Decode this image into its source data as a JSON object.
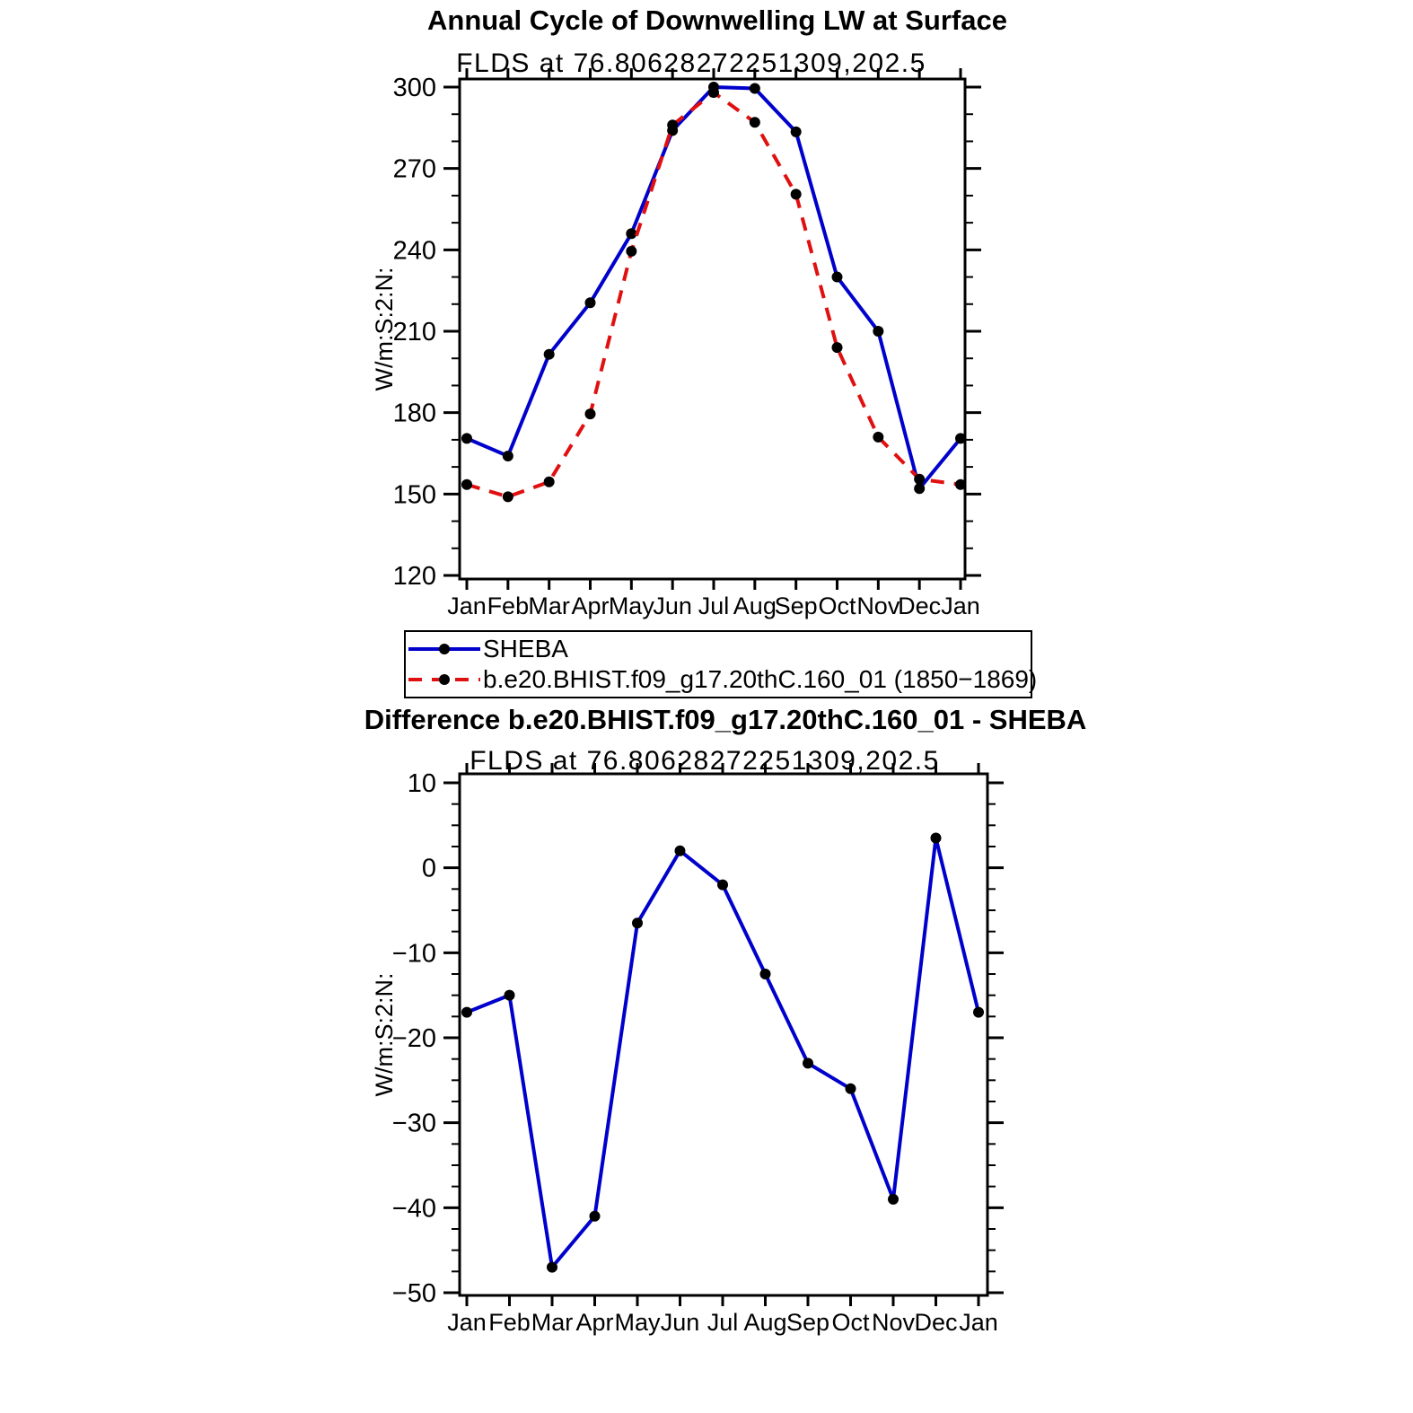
{
  "page": {
    "background": "#ffffff"
  },
  "colors": {
    "axis": "#000000",
    "marker": "#000000",
    "sheba_line": "#0000cc",
    "model_line": "#e01010"
  },
  "legend": {
    "entries": [
      {
        "label": "SHEBA",
        "color": "#0000cc",
        "dash": "none"
      },
      {
        "label": "b.e20.BHIST.f09_g17.20thC.160_01 (1850−1869)",
        "color": "#e01010",
        "dash": "15 11"
      }
    ]
  },
  "chart_data": [
    {
      "type": "line",
      "title": "Annual Cycle of Downwelling LW at Surface",
      "subtitle": "FLDS at 76.80628272251309,202.5",
      "ylabel": "W/m:S:2:N:",
      "xlabel": "",
      "categories": [
        "Jan",
        "Feb",
        "Mar",
        "Apr",
        "May",
        "Jun",
        "Jul",
        "Aug",
        "Sep",
        "Oct",
        "Nov",
        "Dec",
        "Jan"
      ],
      "ylim": [
        120,
        300
      ],
      "yticks": [
        120,
        150,
        180,
        210,
        240,
        270,
        300
      ],
      "y_minor_step": 10,
      "grid": false,
      "legend_position": "below",
      "series": [
        {
          "name": "SHEBA",
          "color": "#0000cc",
          "style": "solid",
          "marker": "circle",
          "values": [
            170.5,
            164,
            201.5,
            220.5,
            246,
            284,
            300,
            299.5,
            283.5,
            230,
            210,
            152,
            170.5
          ]
        },
        {
          "name": "b.e20.BHIST.f09_g17.20thC.160_01 (1850−1869)",
          "color": "#e01010",
          "style": "dashed",
          "marker": "circle",
          "values": [
            153.5,
            149,
            154.5,
            179.5,
            239.5,
            286,
            298,
            287,
            260.5,
            204,
            171,
            155.5,
            153.5
          ]
        }
      ]
    },
    {
      "type": "line",
      "title": "Difference b.e20.BHIST.f09_g17.20thC.160_01 - SHEBA",
      "subtitle": "FLDS at 76.80628272251309,202.5",
      "ylabel": "W/m:S:2:N:",
      "xlabel": "",
      "categories": [
        "Jan",
        "Feb",
        "Mar",
        "Apr",
        "May",
        "Jun",
        "Jul",
        "Aug",
        "Sep",
        "Oct",
        "Nov",
        "Dec",
        "Jan"
      ],
      "ylim": [
        -50,
        10
      ],
      "yticks": [
        -50,
        -40,
        -30,
        -20,
        -10,
        0,
        10
      ],
      "y_minor_step": 2.5,
      "grid": false,
      "legend_position": "none",
      "series": [
        {
          "name": "Difference",
          "color": "#0000cc",
          "style": "solid",
          "marker": "circle",
          "values": [
            -17,
            -15,
            -47,
            -41,
            -6.5,
            2,
            -2,
            -12.5,
            -23,
            -26,
            -39,
            3.5,
            -17
          ]
        }
      ]
    }
  ]
}
